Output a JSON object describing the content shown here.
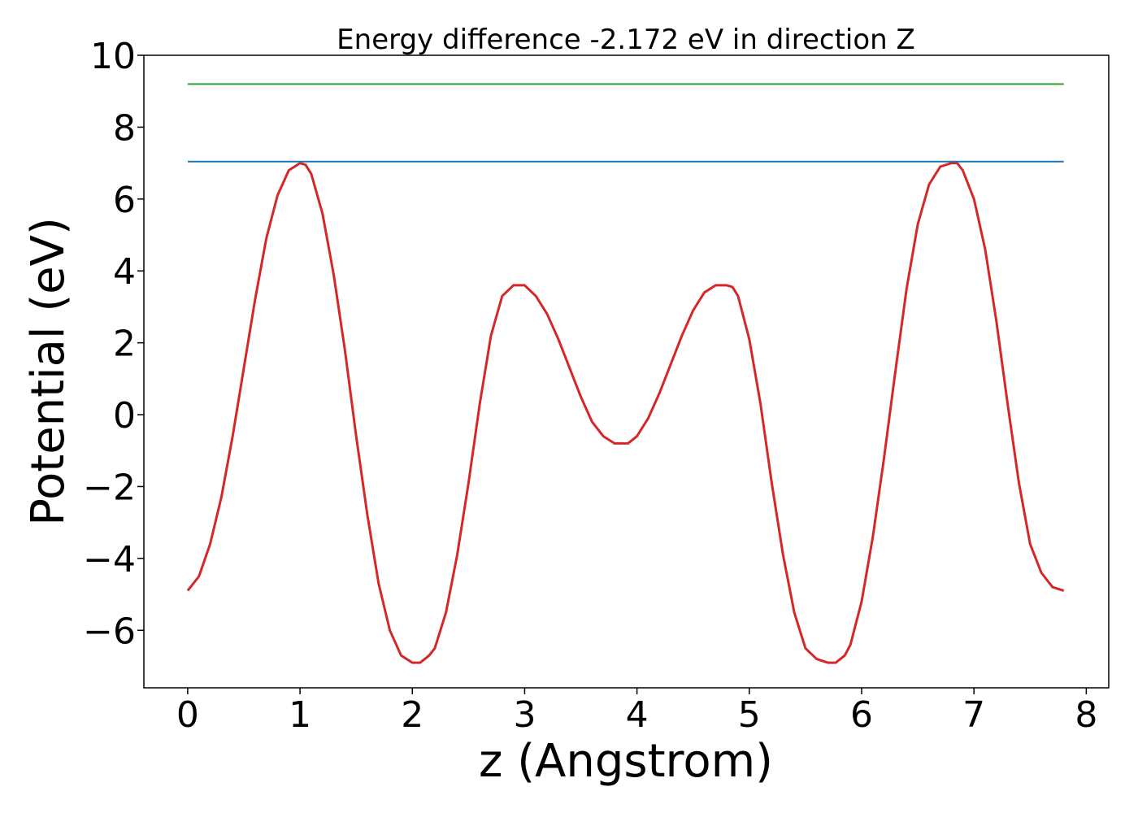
{
  "chart_data": {
    "type": "line",
    "title": "Energy difference -2.172 eV in direction Z",
    "xlabel": "z (Angstrom)",
    "ylabel": "Potential (eV)",
    "xlim": [
      -0.39,
      8.2
    ],
    "ylim": [
      -7.6,
      10.0
    ],
    "x_ticks": [
      0,
      1,
      2,
      3,
      4,
      5,
      6,
      7,
      8
    ],
    "x_tick_labels": [
      "0",
      "1",
      "2",
      "3",
      "4",
      "5",
      "6",
      "7",
      "8"
    ],
    "y_ticks": [
      -6,
      -4,
      -2,
      0,
      2,
      4,
      6,
      8,
      10
    ],
    "y_tick_labels": [
      "−6",
      "−4",
      "−2",
      "0",
      "2",
      "4",
      "6",
      "8",
      "10"
    ],
    "grid": false,
    "series": [
      {
        "color": "#d62728",
        "x": [
          0.0,
          0.1,
          0.2,
          0.3,
          0.4,
          0.5,
          0.6,
          0.7,
          0.8,
          0.9,
          1.0,
          1.05,
          1.1,
          1.2,
          1.3,
          1.4,
          1.5,
          1.6,
          1.7,
          1.8,
          1.9,
          2.0,
          2.07,
          2.15,
          2.2,
          2.3,
          2.4,
          2.5,
          2.6,
          2.7,
          2.8,
          2.9,
          3.0,
          3.1,
          3.2,
          3.3,
          3.4,
          3.5,
          3.6,
          3.7,
          3.8,
          3.92,
          4.0,
          4.1,
          4.2,
          4.3,
          4.4,
          4.5,
          4.6,
          4.7,
          4.8,
          4.85,
          4.9,
          5.0,
          5.1,
          5.2,
          5.3,
          5.4,
          5.5,
          5.6,
          5.7,
          5.77,
          5.85,
          5.9,
          6.0,
          6.1,
          6.2,
          6.3,
          6.4,
          6.5,
          6.6,
          6.7,
          6.8,
          6.85,
          6.9,
          7.0,
          7.1,
          7.2,
          7.3,
          7.4,
          7.5,
          7.6,
          7.7,
          7.8
        ],
        "y": [
          -4.9,
          -4.5,
          -3.6,
          -2.3,
          -0.6,
          1.3,
          3.2,
          4.9,
          6.1,
          6.8,
          7.0,
          6.95,
          6.7,
          5.6,
          3.9,
          1.8,
          -0.6,
          -2.8,
          -4.7,
          -6.0,
          -6.7,
          -6.9,
          -6.9,
          -6.7,
          -6.5,
          -5.5,
          -3.9,
          -1.9,
          0.3,
          2.2,
          3.3,
          3.6,
          3.6,
          3.3,
          2.8,
          2.1,
          1.3,
          0.5,
          -0.2,
          -0.6,
          -0.8,
          -0.8,
          -0.6,
          -0.1,
          0.6,
          1.4,
          2.2,
          2.9,
          3.4,
          3.6,
          3.6,
          3.55,
          3.3,
          2.1,
          0.3,
          -1.9,
          -3.9,
          -5.5,
          -6.5,
          -6.8,
          -6.9,
          -6.9,
          -6.7,
          -6.4,
          -5.2,
          -3.4,
          -1.2,
          1.2,
          3.5,
          5.3,
          6.4,
          6.9,
          7.0,
          7.0,
          6.8,
          6.0,
          4.6,
          2.6,
          0.3,
          -1.9,
          -3.6,
          -4.4,
          -4.8,
          -4.9
        ]
      },
      {
        "color": "#1f77b4",
        "x": [
          0.0,
          7.8
        ],
        "y": [
          7.04,
          7.04
        ]
      },
      {
        "color": "#2ca02c",
        "x": [
          0.0,
          7.8
        ],
        "y": [
          9.2,
          9.2
        ]
      }
    ]
  }
}
